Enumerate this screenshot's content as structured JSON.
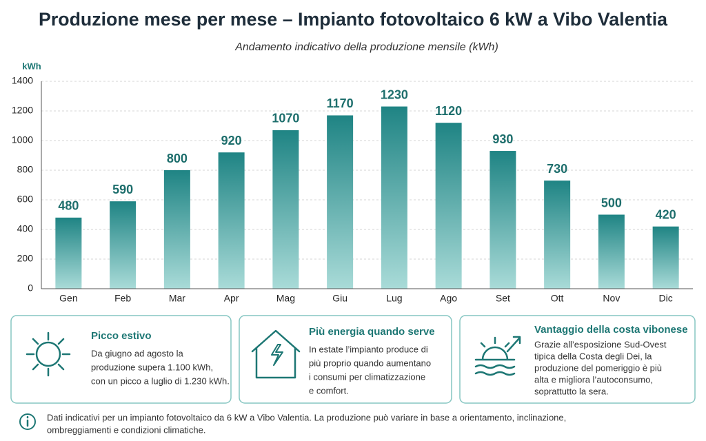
{
  "chart_data": {
    "type": "bar",
    "title": "Produzione mese per mese – Impianto fotovoltaico 6 kW a Vibo Valentia",
    "subtitle": "Andamento indicativo della produzione mensile (kWh)",
    "y_label": "kWh",
    "categories": [
      "Gen",
      "Feb",
      "Mar",
      "Apr",
      "Mag",
      "Giu",
      "Lug",
      "Ago",
      "Set",
      "Ott",
      "Nov",
      "Dic"
    ],
    "values": [
      480,
      590,
      800,
      920,
      1070,
      1170,
      1230,
      1120,
      930,
      730,
      500,
      420
    ],
    "color": "#1f8484",
    "ylim": [
      0,
      1400
    ],
    "yticks": [
      0,
      200,
      400,
      600,
      800,
      1000,
      1200,
      1400
    ],
    "grid": true
  },
  "cards": [
    {
      "title": "Picco estivo",
      "body": [
        "Da giugno ad agosto la",
        "produzione supera 1.100 kWh,",
        "con un picco a luglio di 1.230 kWh."
      ]
    },
    {
      "title": "Più energia quando serve",
      "body": [
        "In estate l’impianto produce di",
        "più proprio quando aumentano",
        "i consumi per climatizzazione",
        "e comfort."
      ]
    },
    {
      "title": "Vantaggio della costa vibonese",
      "body": [
        "Grazie all’esposizione Sud-Ovest",
        "tipica della Costa degli Dei, la",
        "produzione del pomeriggio è più",
        "alta e migliora l’autoconsumo,",
        "soprattutto la sera."
      ]
    }
  ],
  "footer_note": [
    "Dati indicativi per un impianto fotovoltaico da 6 kW a Vibo Valentia. La produzione può variare in base a orientamento, inclinazione,",
    "ombreggiamenti e condizioni climatiche."
  ]
}
